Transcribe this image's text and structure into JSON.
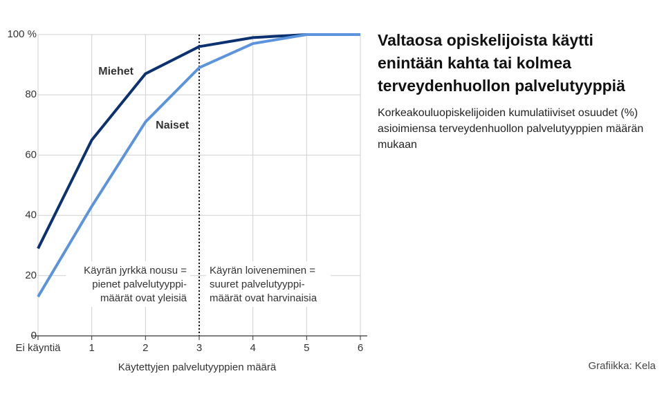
{
  "chart_data": {
    "type": "line",
    "title": "Valtaosa opiskelijoista käytti enintään kahta tai kolmea terveydenhuollon palvelutyyppiä",
    "subtitle": "Korkeakouluopiskelijoiden kumulatiiviset osuudet (%) asioimiensa terveydenhuollon palvelutyyppien määrän mukaan",
    "x_label": "Käytettyjen palvelutyyppien määrä",
    "source": "Grafiikka: Kela",
    "categories": [
      "Ei käyntiä",
      "1",
      "2",
      "3",
      "4",
      "5",
      "6"
    ],
    "series": [
      {
        "name": "Miehet",
        "color": "#0b3170",
        "values": [
          29,
          65,
          87,
          96,
          99,
          100,
          100
        ]
      },
      {
        "name": "Naiset",
        "color": "#5b94dc",
        "values": [
          13,
          43,
          71,
          89,
          97,
          100,
          100
        ]
      }
    ],
    "ylim": [
      0,
      100
    ],
    "yticks": [
      0,
      20,
      40,
      60,
      80,
      {
        "value": 100,
        "label": "100 %"
      }
    ],
    "grid": true,
    "reference_line": {
      "category": "3",
      "style": "dotted"
    },
    "annotations": [
      [
        "Käyrän jyrkkä nousu =",
        "pienet palvelutyyppi-",
        "määrät ovat yleisiä"
      ],
      [
        "Käyrän loiveneminen =",
        "suuret palvelutyyppi-",
        "määrät ovat harvinaisia"
      ]
    ]
  }
}
